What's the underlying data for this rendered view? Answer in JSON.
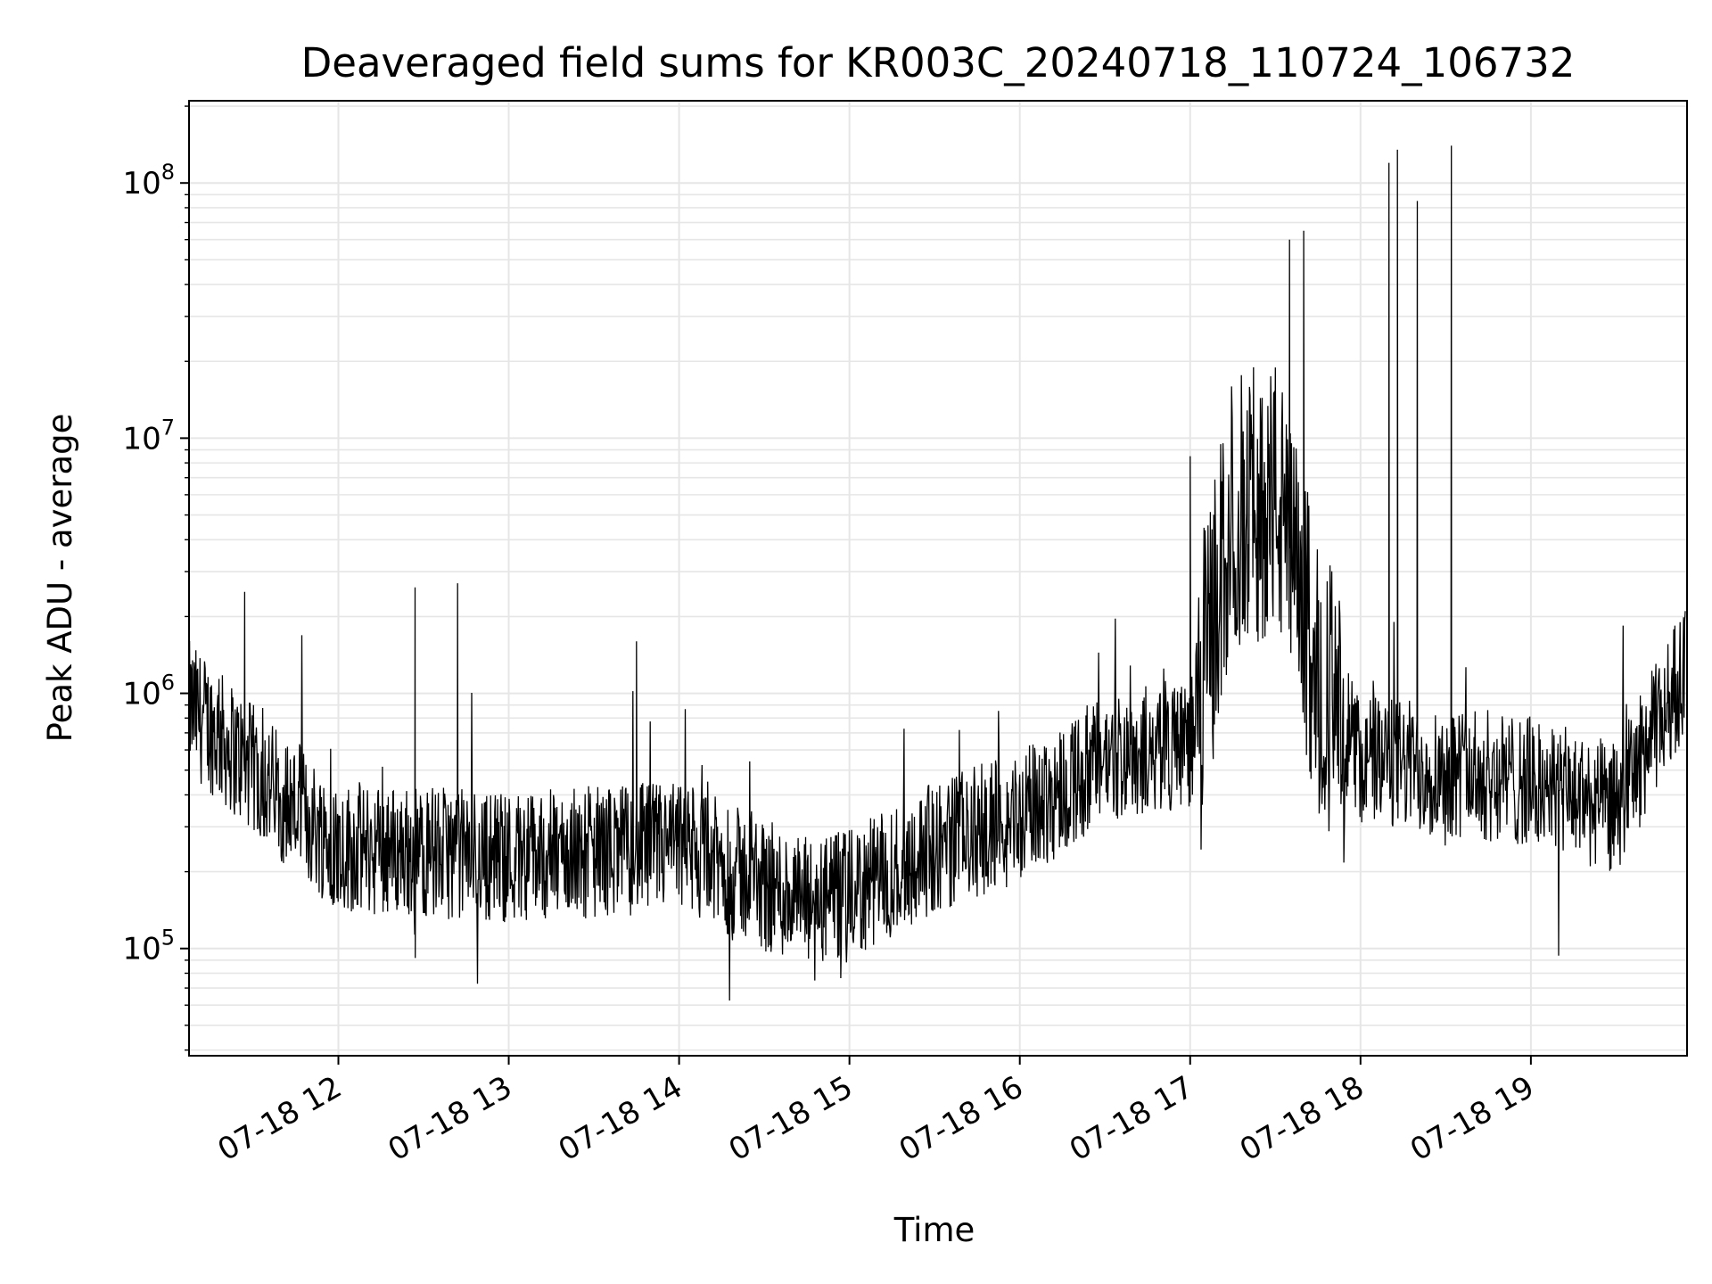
{
  "chart_data": {
    "type": "line",
    "title": "Deaveraged field sums for KR003C_20240718_110724_106732",
    "xlabel": "Time",
    "ylabel": "Peak ADU - average",
    "y_scale": "log",
    "ylim": [
      38000,
      210000000
    ],
    "xlim": [
      "2024-07-18 11:07:24",
      "2024-07-18 19:55:00"
    ],
    "x_ticks": [
      "2024-07-18 12:00",
      "2024-07-18 13:00",
      "2024-07-18 14:00",
      "2024-07-18 15:00",
      "2024-07-18 16:00",
      "2024-07-18 17:00",
      "2024-07-18 18:00",
      "2024-07-18 19:00"
    ],
    "x_tick_labels": [
      "07-18 12",
      "07-18 13",
      "07-18 14",
      "07-18 15",
      "07-18 16",
      "07-18 17",
      "07-18 18",
      "07-18 19"
    ],
    "y_tick_values": [
      100000,
      1000000,
      10000000,
      100000000
    ],
    "y_tick_exponents": [
      "5",
      "6",
      "7",
      "8"
    ],
    "y_tick_base": "10",
    "grid": true,
    "line_color": "#000000",
    "grid_color": "#e6e6e6",
    "series": [
      {
        "values_summary": {
          "points": [
            [
              "2024-07-18 11:07",
              900000
            ],
            [
              "2024-07-18 11:30",
              500000
            ],
            [
              "2024-07-18 12:00",
              250000
            ],
            [
              "2024-07-18 13:00",
              230000
            ],
            [
              "2024-07-18 14:00",
              250000
            ],
            [
              "2024-07-18 14:45",
              150000
            ],
            [
              "2024-07-18 15:00",
              160000
            ],
            [
              "2024-07-18 15:30",
              250000
            ],
            [
              "2024-07-18 16:00",
              330000
            ],
            [
              "2024-07-18 16:30",
              550000
            ],
            [
              "2024-07-18 17:00",
              650000
            ],
            [
              "2024-07-18 17:15",
              5000000
            ],
            [
              "2024-07-18 17:30",
              6000000
            ],
            [
              "2024-07-18 17:45",
              1200000
            ],
            [
              "2024-07-18 18:00",
              550000
            ],
            [
              "2024-07-18 18:30",
              500000
            ],
            [
              "2024-07-18 19:00",
              450000
            ],
            [
              "2024-07-18 19:30",
              350000
            ],
            [
              "2024-07-18 19:55",
              1300000
            ]
          ],
          "spikes": [
            [
              "2024-07-18 11:27",
              2500000
            ],
            [
              "2024-07-18 12:27",
              2600000
            ],
            [
              "2024-07-18 12:42",
              2700000
            ],
            [
              "2024-07-18 13:45",
              1600000
            ],
            [
              "2024-07-18 17:00",
              8500000
            ],
            [
              "2024-07-18 17:35",
              60000000
            ],
            [
              "2024-07-18 17:40",
              65000000
            ],
            [
              "2024-07-18 18:10",
              120000000
            ],
            [
              "2024-07-18 18:13",
              135000000
            ],
            [
              "2024-07-18 18:20",
              85000000
            ],
            [
              "2024-07-18 18:32",
              140000000
            ]
          ]
        }
      }
    ]
  }
}
